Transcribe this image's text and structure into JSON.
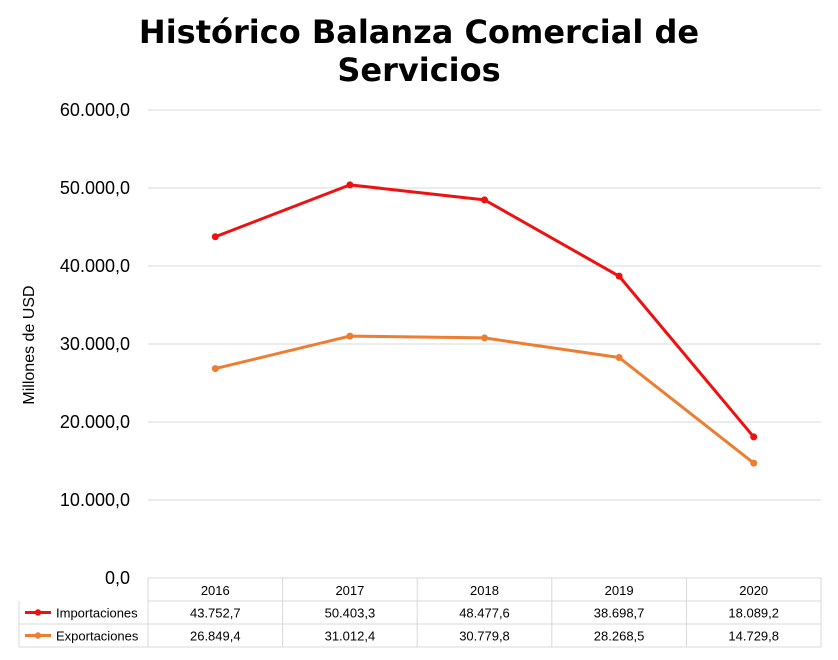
{
  "chart_data": {
    "type": "line",
    "title": "Histórico Balanza Comercial de Servicios",
    "title_lines": [
      "Histórico Balanza Comercial de",
      "Servicios"
    ],
    "xlabel": "",
    "ylabel": "Millones  de USD",
    "ylim": [
      0,
      60000
    ],
    "yticks": [
      0,
      10000,
      20000,
      30000,
      40000,
      50000,
      60000
    ],
    "ytick_labels": [
      "0,0",
      "10.000,0",
      "20.000,0",
      "30.000,0",
      "40.000,0",
      "50.000,0",
      "60.000,0"
    ],
    "categories": [
      "2016",
      "2017",
      "2018",
      "2019",
      "2020"
    ],
    "grid": true,
    "legend": "data-table",
    "series": [
      {
        "name": "Importaciones",
        "color": "#ee1111",
        "values": [
          43752.7,
          50403.3,
          48477.6,
          38698.7,
          18089.2
        ],
        "labels": [
          "43.752,7",
          "50.403,3",
          "48.477,6",
          "38.698,7",
          "18.089,2"
        ]
      },
      {
        "name": "Exportaciones",
        "color": "#ed7d31",
        "values": [
          26849.4,
          31012.4,
          30779.8,
          28268.5,
          14729.8
        ],
        "labels": [
          "26.849,4",
          "31.012,4",
          "30.779,8",
          "28.268,5",
          "14.729,8"
        ]
      }
    ]
  }
}
